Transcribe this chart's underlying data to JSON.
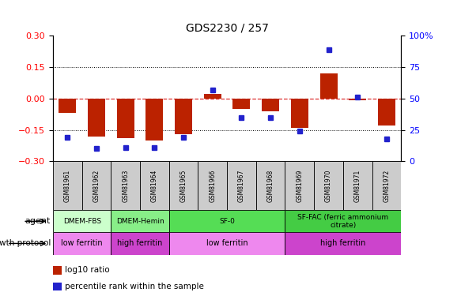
{
  "title": "GDS2230 / 257",
  "samples": [
    "GSM81961",
    "GSM81962",
    "GSM81963",
    "GSM81964",
    "GSM81965",
    "GSM81966",
    "GSM81967",
    "GSM81968",
    "GSM81969",
    "GSM81970",
    "GSM81971",
    "GSM81972"
  ],
  "log10_ratio": [
    -0.07,
    -0.18,
    -0.19,
    -0.2,
    -0.17,
    0.02,
    -0.05,
    -0.06,
    -0.14,
    0.12,
    -0.01,
    -0.13
  ],
  "percentile_rank": [
    19,
    10,
    11,
    11,
    19,
    57,
    35,
    35,
    24,
    89,
    51,
    18
  ],
  "bar_color": "#bb2200",
  "dot_color": "#2222cc",
  "ylim_left": [
    -0.3,
    0.3
  ],
  "ylim_right": [
    0,
    100
  ],
  "yticks_left": [
    -0.3,
    -0.15,
    0.0,
    0.15,
    0.3
  ],
  "yticks_right": [
    0,
    25,
    50,
    75,
    100
  ],
  "agent_groups": [
    {
      "label": "DMEM-FBS",
      "start": 0,
      "end": 2,
      "color": "#ccffcc"
    },
    {
      "label": "DMEM-Hemin",
      "start": 2,
      "end": 4,
      "color": "#88ee88"
    },
    {
      "label": "SF-0",
      "start": 4,
      "end": 8,
      "color": "#55dd55"
    },
    {
      "label": "SF-FAC (ferric ammonium\ncitrate)",
      "start": 8,
      "end": 12,
      "color": "#44cc44"
    }
  ],
  "growth_groups": [
    {
      "label": "low ferritin",
      "start": 0,
      "end": 2,
      "color": "#ee88ee"
    },
    {
      "label": "high ferritin",
      "start": 2,
      "end": 4,
      "color": "#cc44cc"
    },
    {
      "label": "low ferritin",
      "start": 4,
      "end": 8,
      "color": "#ee88ee"
    },
    {
      "label": "high ferritin",
      "start": 8,
      "end": 12,
      "color": "#cc44cc"
    }
  ],
  "legend_items": [
    {
      "label": "log10 ratio",
      "color": "#bb2200"
    },
    {
      "label": "percentile rank within the sample",
      "color": "#2222cc"
    }
  ]
}
